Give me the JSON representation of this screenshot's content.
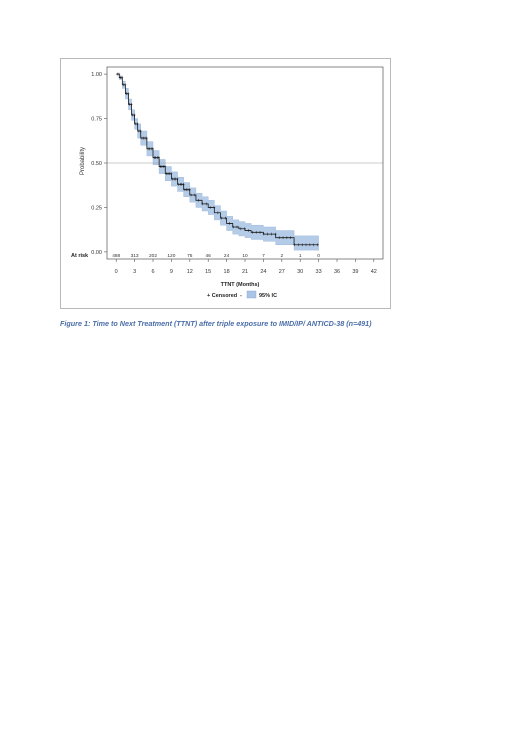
{
  "chart_data": {
    "type": "line",
    "subtype": "kaplan-meier",
    "ylabel": "Probability",
    "xlabel": "TTNT (Months)",
    "x_ticks": [
      0,
      3,
      6,
      9,
      12,
      15,
      18,
      21,
      24,
      27,
      30,
      33,
      36,
      39,
      42
    ],
    "y_ticks": [
      "0.00",
      "0.25",
      "0.50",
      "0.75",
      "1.00"
    ],
    "xlim": [
      -1.5,
      43.5
    ],
    "ylim": [
      -0.04,
      1.04
    ],
    "reference_line_y": 0.5,
    "at_risk_label": "At risk",
    "at_risk": [
      {
        "x": 0,
        "n": "488"
      },
      {
        "x": 3,
        "n": "313"
      },
      {
        "x": 6,
        "n": "202"
      },
      {
        "x": 9,
        "n": "120"
      },
      {
        "x": 12,
        "n": "75"
      },
      {
        "x": 15,
        "n": "46"
      },
      {
        "x": 18,
        "n": "24"
      },
      {
        "x": 21,
        "n": "10"
      },
      {
        "x": 24,
        "n": "7"
      },
      {
        "x": 27,
        "n": "2"
      },
      {
        "x": 30,
        "n": "1"
      },
      {
        "x": 33,
        "n": "0"
      }
    ],
    "series": [
      {
        "x": [
          0,
          0.5,
          1,
          1.5,
          2,
          2.5,
          3,
          3.5,
          4,
          5,
          6,
          7,
          8,
          9,
          10,
          11,
          12,
          13,
          14,
          15,
          16,
          17,
          18,
          19,
          20,
          21,
          22,
          23,
          24,
          25,
          26,
          27,
          28,
          29,
          30,
          31,
          32,
          33
        ],
        "y": [
          1.0,
          0.98,
          0.94,
          0.89,
          0.83,
          0.77,
          0.72,
          0.68,
          0.64,
          0.58,
          0.53,
          0.48,
          0.44,
          0.41,
          0.38,
          0.35,
          0.32,
          0.29,
          0.27,
          0.25,
          0.22,
          0.19,
          0.16,
          0.14,
          0.13,
          0.12,
          0.11,
          0.11,
          0.1,
          0.1,
          0.08,
          0.08,
          0.08,
          0.04,
          0.04,
          0.04,
          0.04,
          0.04
        ],
        "ci_lower": [
          1.0,
          0.97,
          0.92,
          0.86,
          0.8,
          0.74,
          0.69,
          0.64,
          0.6,
          0.54,
          0.49,
          0.44,
          0.4,
          0.37,
          0.34,
          0.31,
          0.28,
          0.25,
          0.23,
          0.21,
          0.18,
          0.15,
          0.12,
          0.1,
          0.09,
          0.08,
          0.07,
          0.07,
          0.06,
          0.06,
          0.04,
          0.04,
          0.04,
          0.01,
          0.01,
          0.01,
          0.01,
          0.01
        ],
        "ci_upper": [
          1.0,
          0.99,
          0.96,
          0.92,
          0.86,
          0.8,
          0.75,
          0.72,
          0.68,
          0.62,
          0.57,
          0.52,
          0.48,
          0.45,
          0.42,
          0.39,
          0.36,
          0.33,
          0.31,
          0.29,
          0.26,
          0.23,
          0.2,
          0.18,
          0.17,
          0.16,
          0.15,
          0.15,
          0.14,
          0.14,
          0.12,
          0.12,
          0.12,
          0.09,
          0.09,
          0.09,
          0.09,
          0.09
        ]
      }
    ],
    "legend": {
      "censored_label": "+ Censored",
      "separator": "-",
      "ci_label": "95% IC",
      "ci_color": "#a9c4e4"
    },
    "colors": {
      "curve": "#1a1a1a",
      "band": "#a9c4e4",
      "band_stroke": "#8fb0d8",
      "reference_line": "#9a9a9a"
    }
  },
  "caption": "Figure 1: Time to Next Treatment (TTNT) after triple exposure to IMID/IP/ ANTICD-38 (n=491)"
}
